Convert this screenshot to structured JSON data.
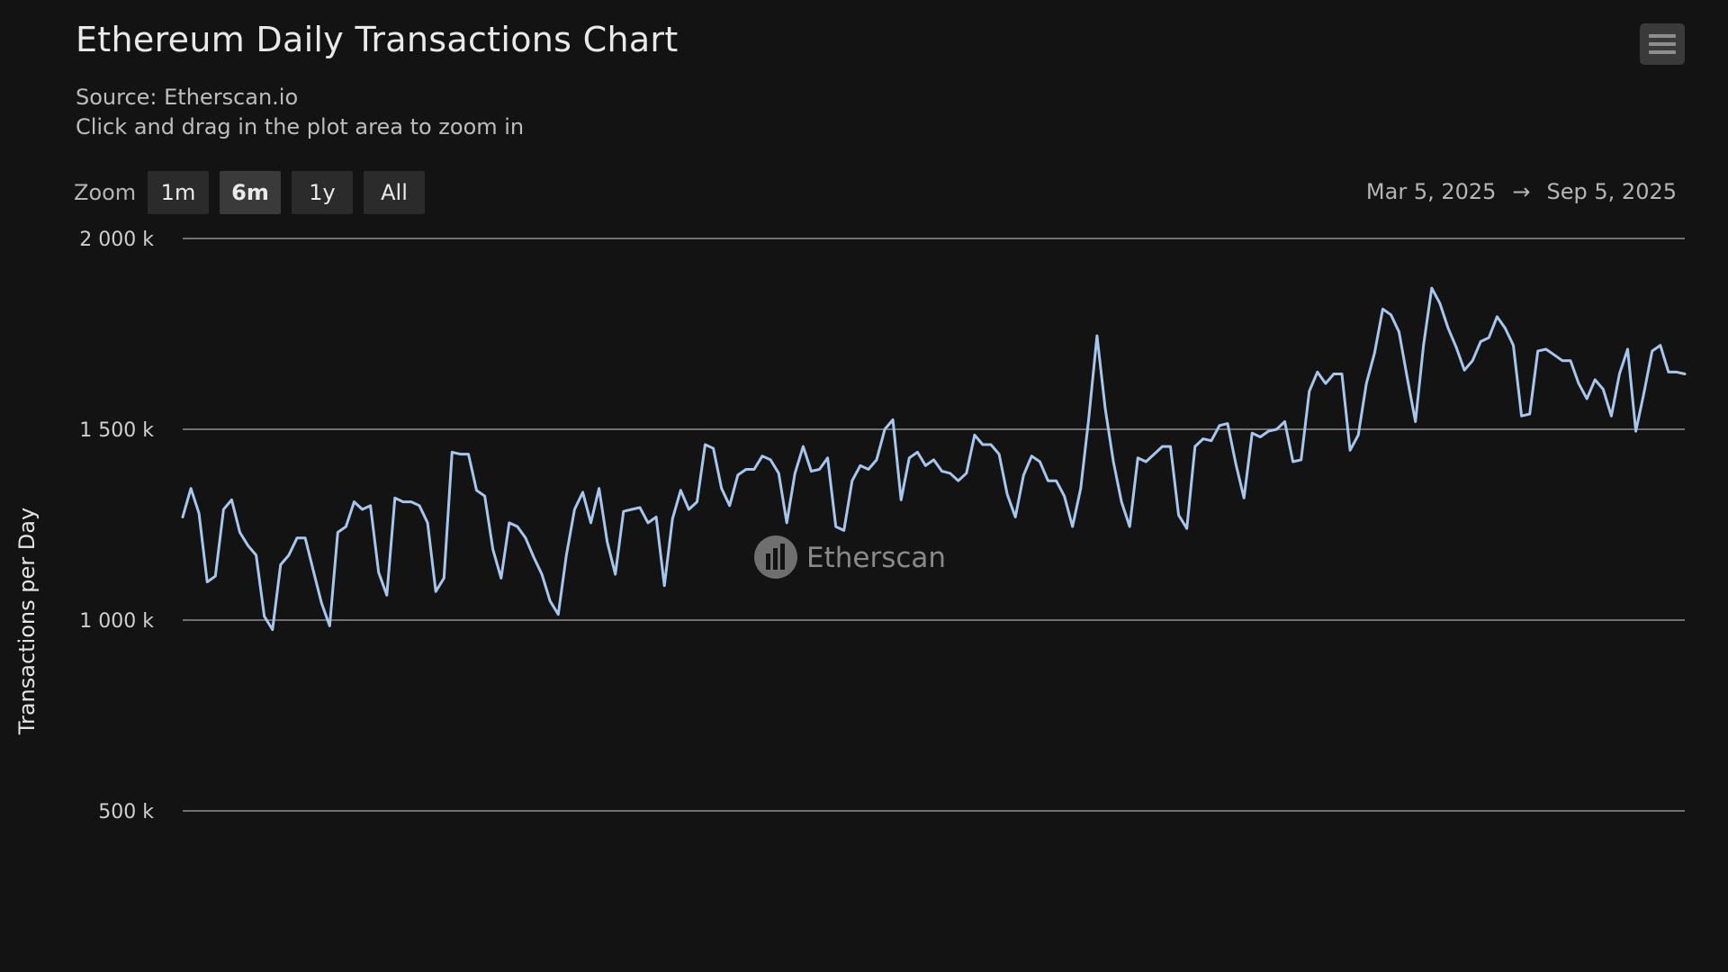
{
  "header": {
    "title": "Ethereum Daily Transactions Chart",
    "source": "Source: Etherscan.io",
    "hint": "Click and drag in the plot area to zoom in",
    "menu_icon": "hamburger-menu-icon"
  },
  "zoom": {
    "label": "Zoom",
    "buttons": [
      "1m",
      "6m",
      "1y",
      "All"
    ],
    "selected": "6m"
  },
  "range": {
    "from": "Mar 5, 2025",
    "arrow": "→",
    "to": "Sep 5, 2025"
  },
  "watermark": {
    "text": "Etherscan"
  },
  "chart_data": {
    "type": "line",
    "title": "Ethereum Daily Transactions Chart",
    "subtitle": "Source: Etherscan.io",
    "xlabel": "",
    "ylabel": "Transactions per Day",
    "x_start": "2025-03-05",
    "x_end": "2025-09-05",
    "ylim": [
      250000,
      2000000
    ],
    "yticks": [
      500000,
      1000000,
      1500000,
      2000000
    ],
    "ytick_labels": [
      "500 k",
      "1 000 k",
      "1 500 k",
      "2 000 k"
    ],
    "grid": true,
    "line_color": "#a7c6ed",
    "series": [
      {
        "values": [
          1270000,
          1345000,
          1280000,
          1100000,
          1115000,
          1290000,
          1315000,
          1230000,
          1195000,
          1170000,
          1010000,
          975000,
          1145000,
          1170000,
          1215000,
          1215000,
          1130000,
          1045000,
          985000,
          1230000,
          1245000,
          1310000,
          1290000,
          1300000,
          1125000,
          1065000,
          1320000,
          1310000,
          1310000,
          1300000,
          1255000,
          1075000,
          1110000,
          1440000,
          1435000,
          1435000,
          1340000,
          1325000,
          1185000,
          1110000,
          1255000,
          1245000,
          1215000,
          1165000,
          1120000,
          1050000,
          1015000,
          1170000,
          1290000,
          1335000,
          1255000,
          1345000,
          1205000,
          1120000,
          1285000,
          1290000,
          1295000,
          1255000,
          1270000,
          1090000,
          1265000,
          1340000,
          1290000,
          1310000,
          1460000,
          1450000,
          1345000,
          1300000,
          1380000,
          1395000,
          1395000,
          1430000,
          1420000,
          1385000,
          1255000,
          1385000,
          1455000,
          1390000,
          1395000,
          1425000,
          1245000,
          1235000,
          1365000,
          1405000,
          1395000,
          1420000,
          1500000,
          1525000,
          1315000,
          1425000,
          1440000,
          1405000,
          1420000,
          1390000,
          1385000,
          1365000,
          1385000,
          1485000,
          1460000,
          1460000,
          1435000,
          1330000,
          1270000,
          1380000,
          1430000,
          1415000,
          1365000,
          1365000,
          1325000,
          1245000,
          1345000,
          1530000,
          1745000,
          1555000,
          1415000,
          1310000,
          1245000,
          1425000,
          1415000,
          1435000,
          1455000,
          1455000,
          1275000,
          1240000,
          1455000,
          1475000,
          1470000,
          1510000,
          1515000,
          1410000,
          1320000,
          1490000,
          1480000,
          1495000,
          1500000,
          1520000,
          1415000,
          1420000,
          1600000,
          1650000,
          1620000,
          1645000,
          1645000,
          1445000,
          1485000,
          1620000,
          1700000,
          1815000,
          1800000,
          1755000,
          1635000,
          1520000,
          1720000,
          1870000,
          1830000,
          1765000,
          1715000,
          1655000,
          1680000,
          1730000,
          1740000,
          1795000,
          1765000,
          1720000,
          1535000,
          1540000,
          1705000,
          1710000,
          1695000,
          1680000,
          1680000,
          1620000,
          1580000,
          1630000,
          1605000,
          1535000,
          1645000,
          1710000,
          1495000,
          1595000,
          1705000,
          1720000,
          1650000,
          1650000,
          1645000
        ]
      }
    ]
  }
}
